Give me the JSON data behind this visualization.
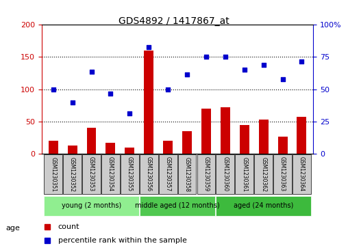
{
  "title": "GDS4892 / 1417867_at",
  "samples": [
    "GSM1230351",
    "GSM1230352",
    "GSM1230353",
    "GSM1230354",
    "GSM1230355",
    "GSM1230356",
    "GSM1230357",
    "GSM1230358",
    "GSM1230359",
    "GSM1230360",
    "GSM1230361",
    "GSM1230362",
    "GSM1230363",
    "GSM1230364"
  ],
  "counts": [
    20,
    13,
    40,
    17,
    10,
    160,
    20,
    35,
    70,
    72,
    45,
    53,
    27,
    57
  ],
  "percentiles": [
    100,
    80,
    127,
    93,
    63,
    165,
    100,
    123,
    150,
    150,
    130,
    138,
    116,
    143
  ],
  "ylim_left": [
    0,
    200
  ],
  "ylim_right": [
    0,
    100
  ],
  "yticks_left": [
    0,
    50,
    100,
    150,
    200
  ],
  "ytick_labels_right": [
    "0",
    "25",
    "50",
    "75",
    "100%"
  ],
  "groups": [
    {
      "label": "young (2 months)",
      "start": 0,
      "end": 5,
      "color": "#90ee90"
    },
    {
      "label": "middle aged (12 months)",
      "start": 5,
      "end": 9,
      "color": "#50c850"
    },
    {
      "label": "aged (24 months)",
      "start": 9,
      "end": 14,
      "color": "#3dba3d"
    }
  ],
  "bar_color": "#cc0000",
  "dot_color": "#0000cc",
  "sample_box_color": "#cccccc",
  "legend_count_color": "#cc0000",
  "legend_pct_color": "#0000cc",
  "left_axis_color": "#cc0000",
  "right_axis_color": "#0000cc"
}
